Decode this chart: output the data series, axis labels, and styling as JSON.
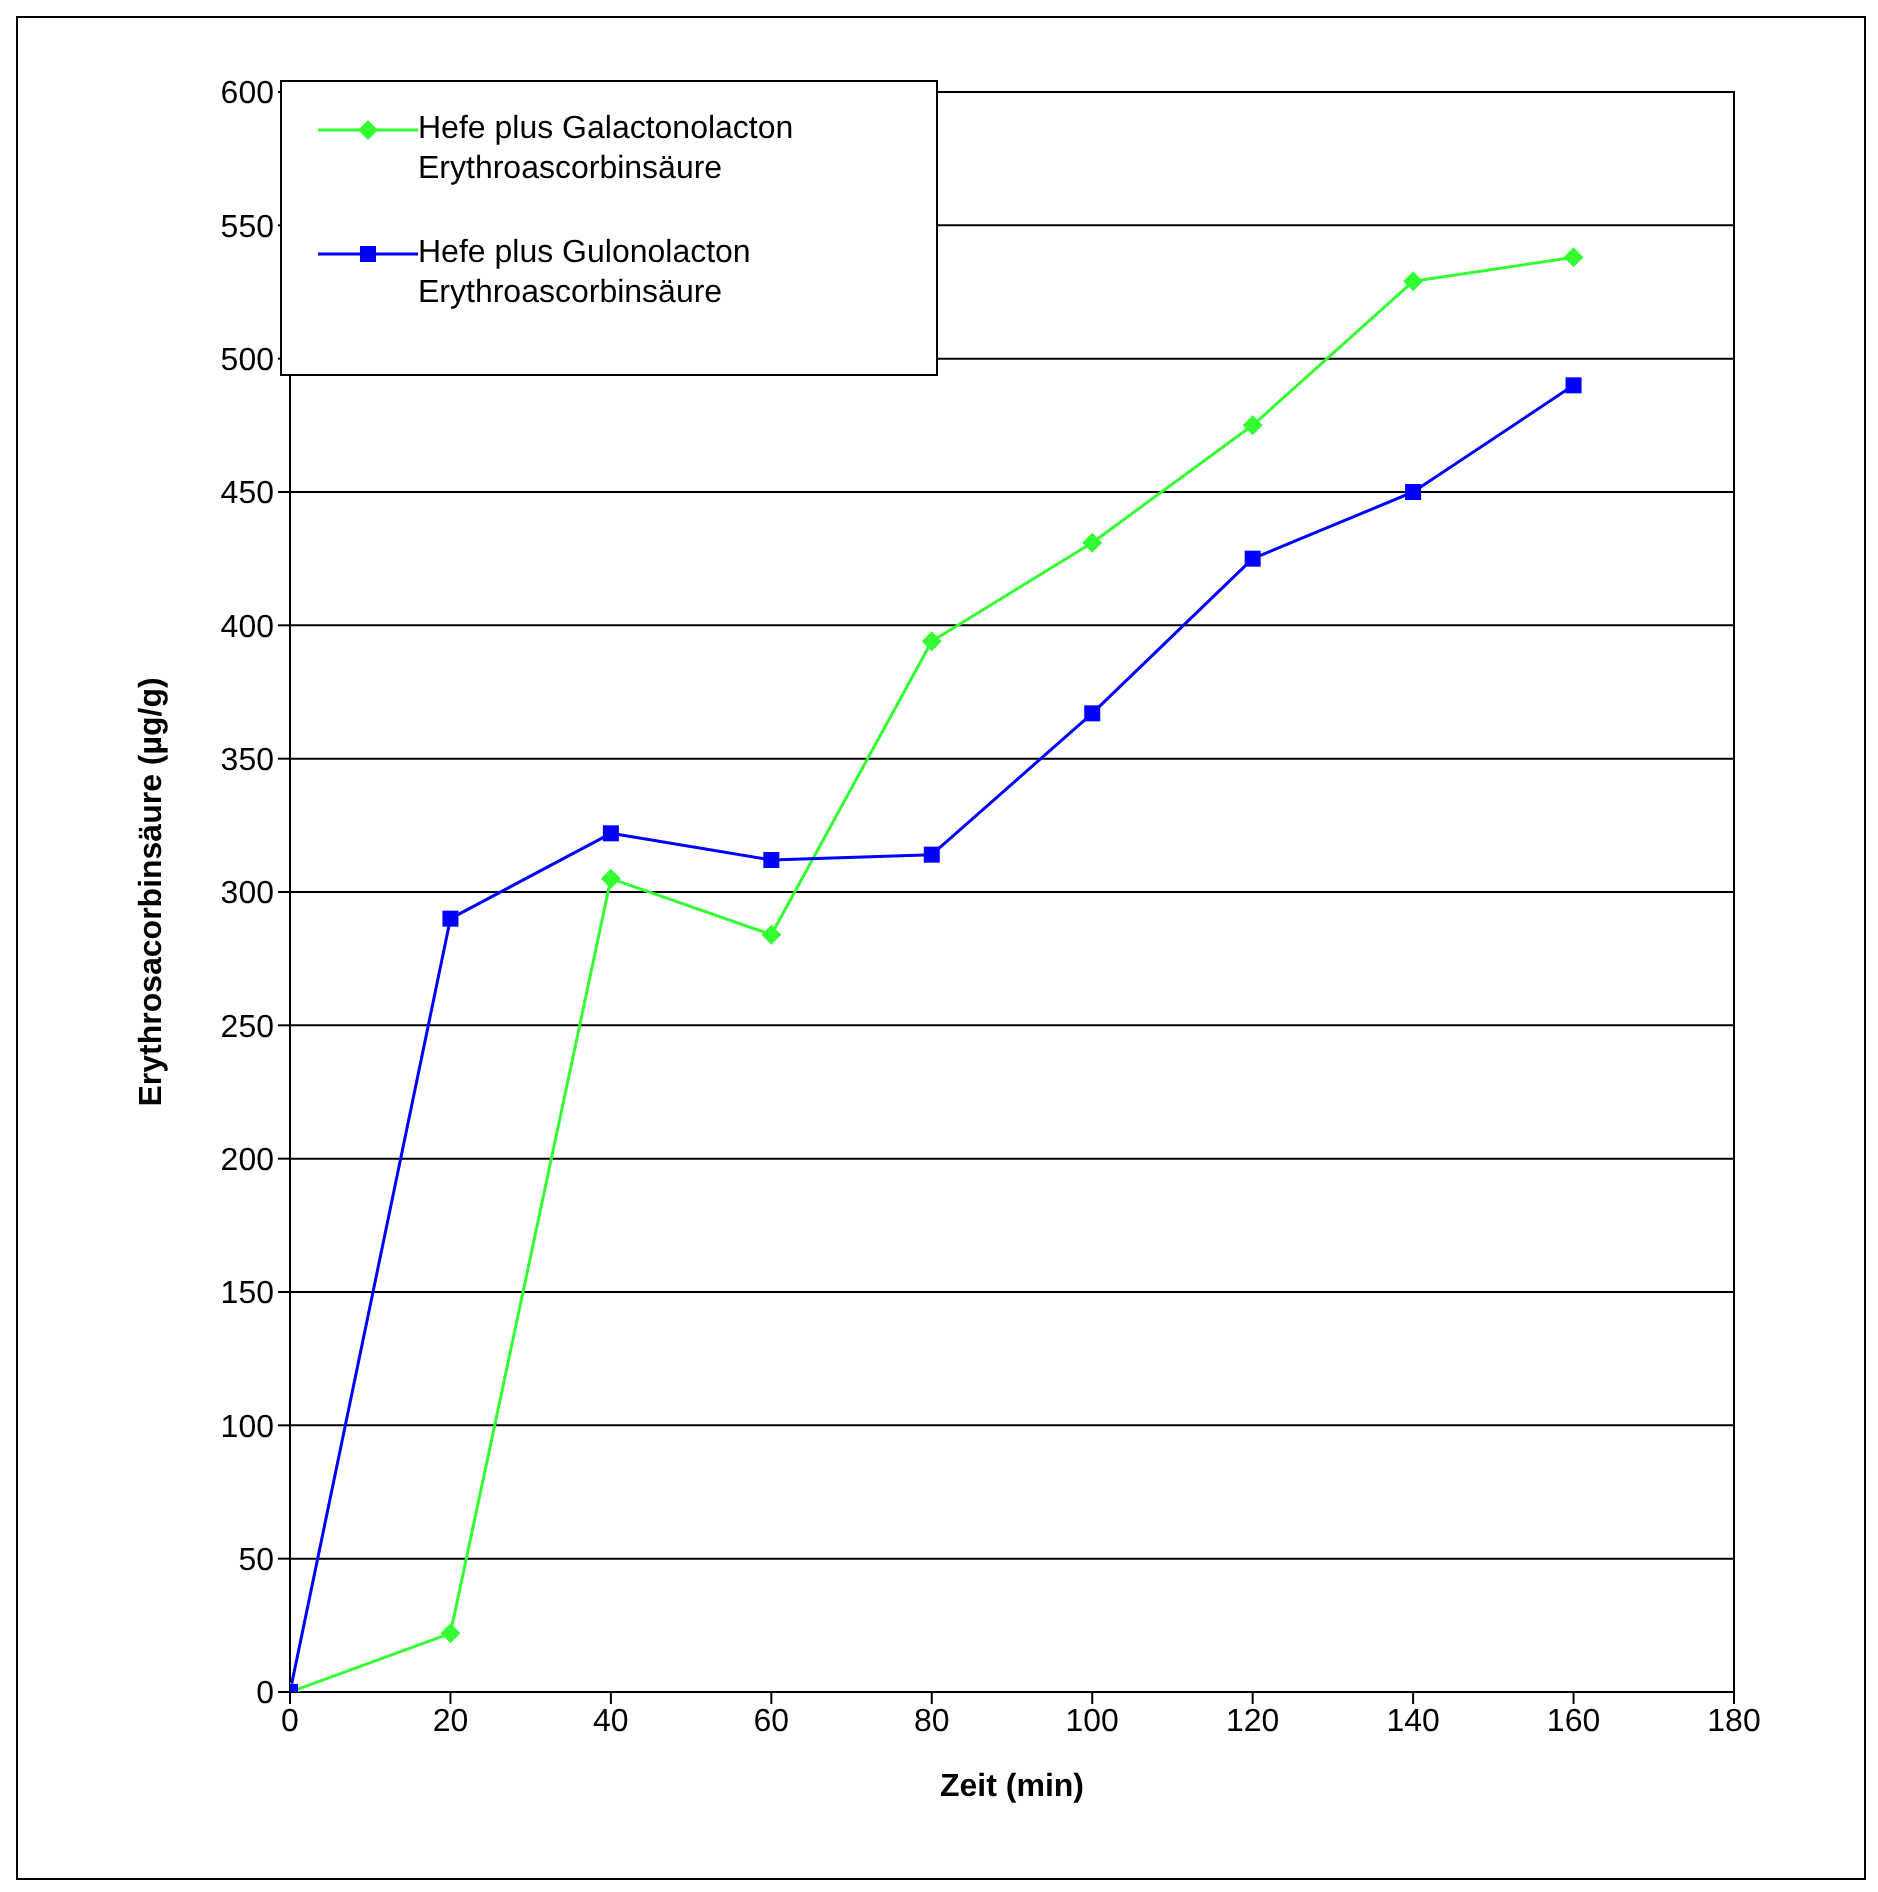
{
  "chart_data": {
    "type": "line",
    "xlabel": "Zeit (min)",
    "ylabel": "Erythrosacorbinsäure (µg/g)",
    "x": [
      0,
      20,
      40,
      60,
      80,
      100,
      120,
      140,
      160
    ],
    "series": [
      {
        "name": "Hefe plus Galactonolacton Erythroascorbinsäure",
        "color": "#33ff33",
        "marker": "diamond",
        "values": [
          0,
          22,
          305,
          284,
          394,
          431,
          475,
          529,
          538
        ]
      },
      {
        "name": "Hefe plus Gulonolacton Erythroascorbinsäure",
        "color": "#0000ff",
        "marker": "square",
        "values": [
          0,
          290,
          322,
          312,
          314,
          367,
          425,
          450,
          490
        ]
      }
    ],
    "xlim": [
      0,
      180
    ],
    "xticks": [
      0,
      20,
      40,
      60,
      80,
      100,
      120,
      140,
      160,
      180
    ],
    "ylim": [
      0,
      600
    ],
    "yticks": [
      0,
      50,
      100,
      150,
      200,
      250,
      300,
      350,
      400,
      450,
      500,
      550,
      600
    ],
    "grid": "y",
    "legend": "top left",
    "line_style": "solid"
  }
}
